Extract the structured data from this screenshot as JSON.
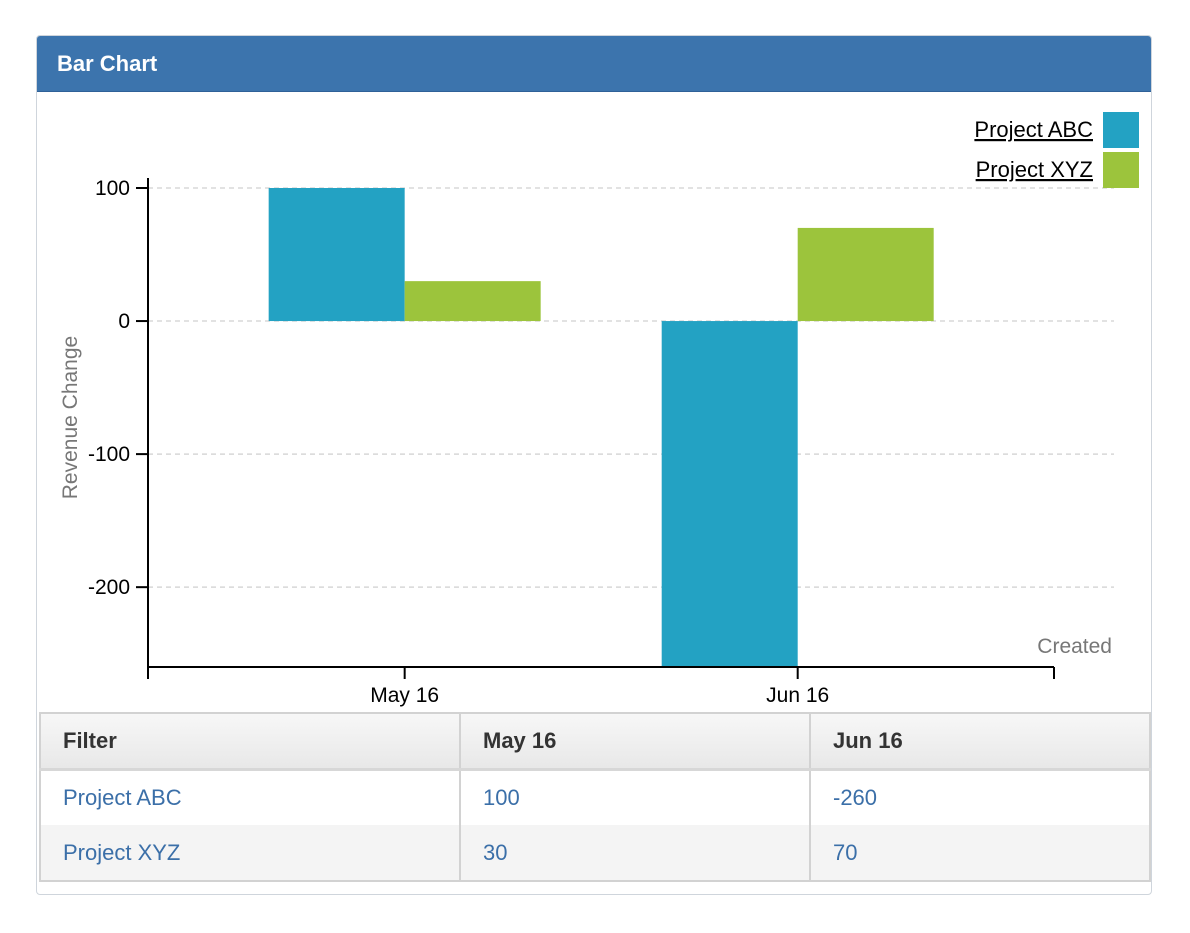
{
  "panel": {
    "title": "Bar Chart"
  },
  "chart_data": {
    "type": "bar",
    "categories": [
      "May 16",
      "Jun 16"
    ],
    "series": [
      {
        "name": "Project ABC",
        "color": "#23a2c3",
        "values": [
          100,
          -260
        ]
      },
      {
        "name": "Project XYZ",
        "color": "#9cc43c",
        "values": [
          30,
          70
        ]
      }
    ],
    "xlabel": "Created",
    "ylabel": "Revenue Change",
    "ylim": [
      -260,
      100
    ],
    "yticks": [
      100,
      0,
      -100,
      -200
    ],
    "grid": true,
    "legend": "top-right"
  },
  "table": {
    "headers": [
      "Filter",
      "May 16",
      "Jun 16"
    ],
    "rows": [
      [
        "Project ABC",
        "100",
        "-260"
      ],
      [
        "Project XYZ",
        "30",
        "70"
      ]
    ]
  }
}
